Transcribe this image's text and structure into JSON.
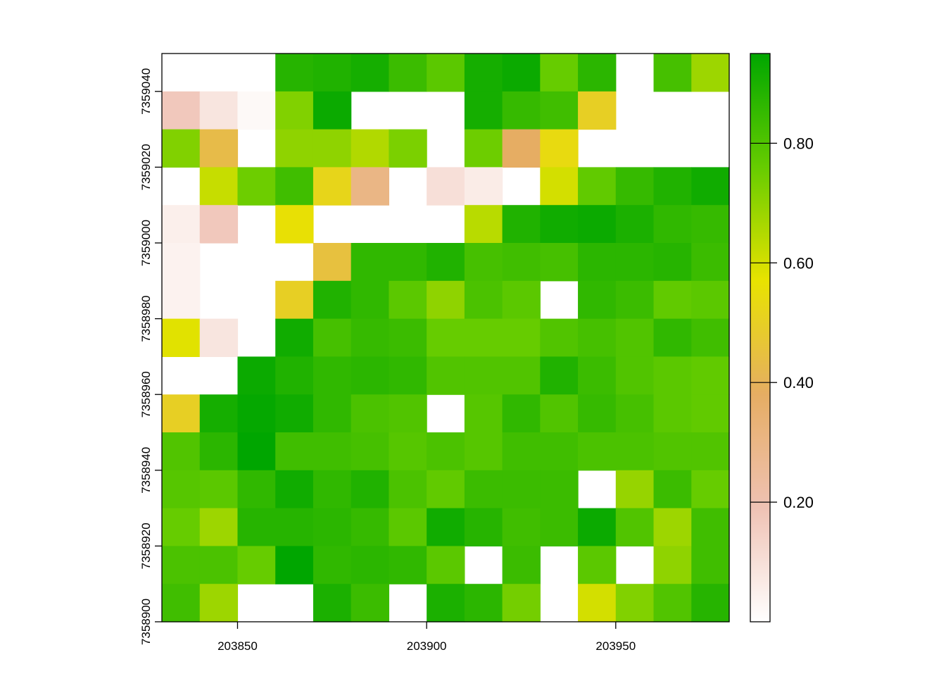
{
  "chart_data": {
    "type": "heatmap",
    "title": "",
    "xlabel": "",
    "ylabel": "",
    "x_ticks": [
      203850,
      203900,
      203950
    ],
    "y_ticks": [
      7358900,
      7358920,
      7358940,
      7358960,
      7358980,
      7359000,
      7359020,
      7359040
    ],
    "x_range": [
      203830,
      203980
    ],
    "y_range": [
      7358900,
      7359050
    ],
    "cell_size": 10,
    "grid": false,
    "colorbar": {
      "position": "right",
      "range": [
        0.0,
        0.95
      ],
      "ticks": [
        0.2,
        0.4,
        0.6,
        0.8
      ],
      "tick_labels": [
        "0.20",
        "0.40",
        "0.60",
        "0.80"
      ],
      "colors": [
        "#ffffff",
        "#efc2b4",
        "#e6ad63",
        "#e8e300",
        "#66cc00",
        "#00a600"
      ]
    },
    "rows_top_to_bottom": [
      [
        null,
        null,
        null,
        0.88,
        0.89,
        0.91,
        0.84,
        0.78,
        0.91,
        0.93,
        0.76,
        0.87,
        null,
        0.82,
        0.68
      ],
      [
        0.17,
        0.08,
        0.02,
        0.72,
        0.93,
        null,
        null,
        null,
        0.91,
        0.85,
        0.83,
        0.5,
        null,
        null,
        null
      ],
      [
        0.72,
        0.43,
        null,
        0.7,
        0.7,
        0.65,
        0.73,
        null,
        0.75,
        0.38,
        0.54,
        null,
        null,
        null,
        null
      ],
      [
        null,
        0.62,
        0.75,
        0.83,
        0.52,
        0.3,
        null,
        0.1,
        0.06,
        null,
        0.6,
        0.77,
        0.85,
        0.89,
        0.92
      ],
      [
        0.05,
        0.17,
        null,
        0.56,
        null,
        null,
        null,
        null,
        0.64,
        0.89,
        0.92,
        0.93,
        0.9,
        0.86,
        0.85
      ],
      [
        0.04,
        null,
        null,
        null,
        0.45,
        0.86,
        0.86,
        0.89,
        0.82,
        0.83,
        0.82,
        0.87,
        0.87,
        0.88,
        0.84
      ],
      [
        0.04,
        null,
        null,
        0.5,
        0.89,
        0.86,
        0.78,
        0.7,
        0.81,
        0.78,
        null,
        0.86,
        0.84,
        0.77,
        0.78
      ],
      [
        0.58,
        0.08,
        null,
        0.92,
        0.82,
        0.85,
        0.84,
        0.76,
        0.76,
        0.76,
        0.8,
        0.82,
        0.8,
        0.86,
        0.83
      ],
      [
        null,
        null,
        0.93,
        0.89,
        0.86,
        0.87,
        0.86,
        0.8,
        0.8,
        0.8,
        0.89,
        0.84,
        0.8,
        0.78,
        0.77
      ],
      [
        0.5,
        0.91,
        0.94,
        0.92,
        0.86,
        0.81,
        0.8,
        null,
        0.79,
        0.86,
        0.8,
        0.85,
        0.82,
        0.78,
        0.77
      ],
      [
        0.8,
        0.87,
        0.95,
        0.83,
        0.83,
        0.82,
        0.79,
        0.81,
        0.79,
        0.83,
        0.83,
        0.81,
        0.81,
        0.8,
        0.8
      ],
      [
        0.79,
        0.78,
        0.86,
        0.92,
        0.86,
        0.89,
        0.81,
        0.77,
        0.84,
        0.84,
        0.84,
        null,
        0.69,
        0.84,
        0.76
      ],
      [
        0.76,
        0.68,
        0.88,
        0.88,
        0.87,
        0.85,
        0.78,
        0.92,
        0.88,
        0.83,
        0.84,
        0.93,
        0.8,
        0.68,
        0.83
      ],
      [
        0.81,
        0.81,
        0.76,
        0.95,
        0.86,
        0.87,
        0.86,
        0.78,
        null,
        0.84,
        null,
        0.78,
        null,
        0.7,
        0.83
      ],
      [
        0.83,
        0.68,
        null,
        null,
        0.9,
        0.84,
        null,
        0.9,
        0.87,
        0.74,
        null,
        0.6,
        0.72,
        0.8,
        0.88
      ]
    ]
  }
}
